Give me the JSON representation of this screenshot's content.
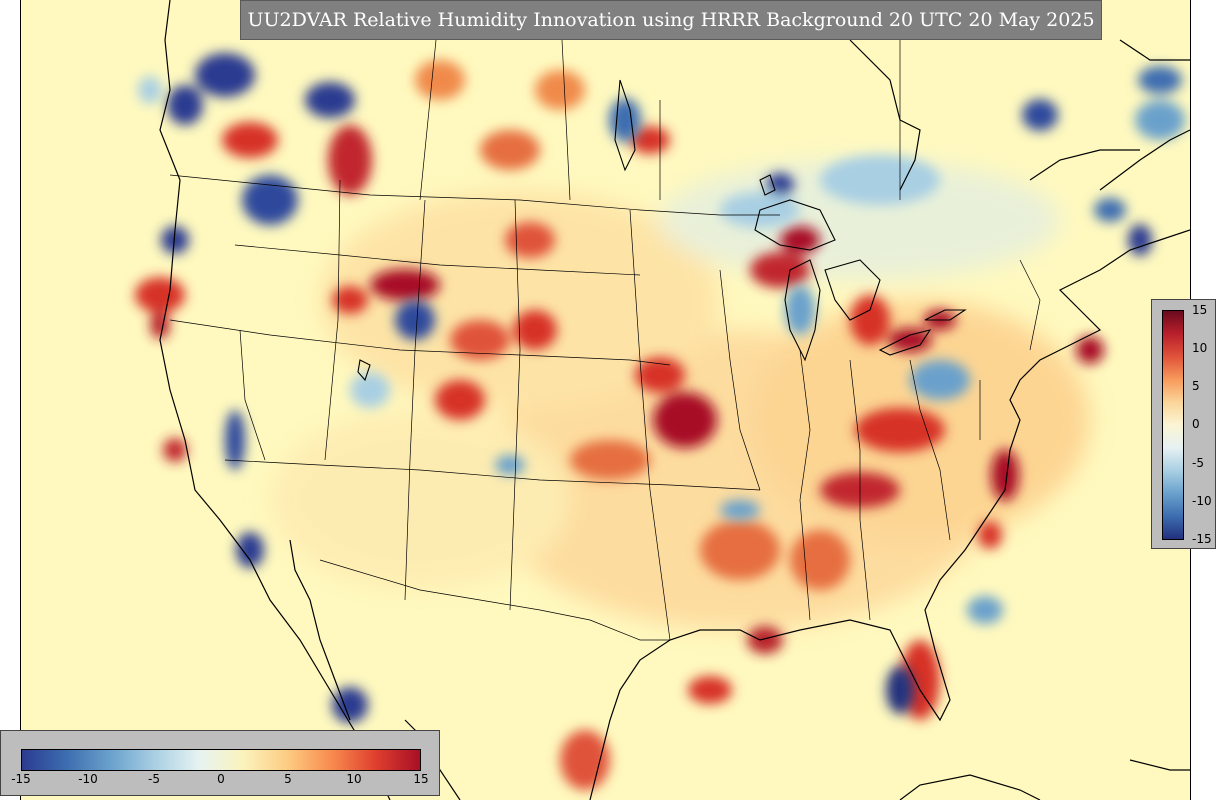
{
  "title": "UU2DVAR Relative Humidity Innovation using HRRR Background 20 UTC 20 May 2025",
  "colors": {
    "background": "#fff9bf",
    "max_positive": "#a80f26",
    "max_negative": "#2b3b90",
    "panel": "#bdbdbd",
    "title_box": "#808080"
  },
  "horizontal_colorbar": {
    "ticks": [
      "-15",
      "-10",
      "-5",
      "0",
      "5",
      "10",
      "15"
    ]
  },
  "vertical_colorbar": {
    "ticks": [
      "15",
      "10",
      "5",
      "0",
      "-5",
      "-10",
      "-15"
    ]
  }
}
